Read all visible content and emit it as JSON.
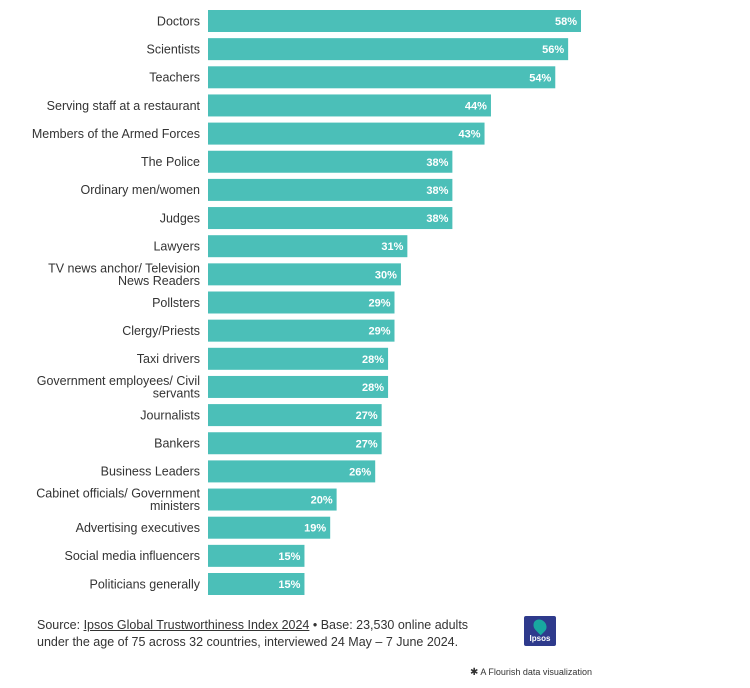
{
  "chart_data": {
    "type": "bar",
    "orientation": "horizontal",
    "bar_color": "#4bbfb8",
    "value_suffix": "%",
    "xlim": [
      0,
      70
    ],
    "grid": false,
    "categories": [
      [
        "Doctors"
      ],
      [
        "Scientists"
      ],
      [
        "Teachers"
      ],
      [
        "Serving staff at a restaurant"
      ],
      [
        "Members of the Armed Forces"
      ],
      [
        "The Police"
      ],
      [
        "Ordinary men/women"
      ],
      [
        "Judges"
      ],
      [
        "Lawyers"
      ],
      [
        "TV news anchor/ Television",
        "News Readers"
      ],
      [
        "Pollsters"
      ],
      [
        "Clergy/Priests"
      ],
      [
        "Taxi drivers"
      ],
      [
        "Government employees/ Civil",
        "servants"
      ],
      [
        "Journalists"
      ],
      [
        "Bankers"
      ],
      [
        "Business Leaders"
      ],
      [
        "Cabinet officials/ Government",
        "ministers"
      ],
      [
        "Advertising executives"
      ],
      [
        "Social media influencers"
      ],
      [
        "Politicians generally"
      ]
    ],
    "values": [
      58,
      56,
      54,
      44,
      43,
      38,
      38,
      38,
      31,
      30,
      29,
      29,
      28,
      28,
      27,
      27,
      26,
      20,
      19,
      15,
      15
    ],
    "value_labels": [
      "58%",
      "56%",
      "54%",
      "44%",
      "43%",
      "38%",
      "38%",
      "38%",
      "31%",
      "30%",
      "29%",
      "29%",
      "28%",
      "28%",
      "27%",
      "27%",
      "26%",
      "20%",
      "19%",
      "15%",
      "15%"
    ]
  },
  "footer": {
    "source_prefix": "Source: ",
    "source_link": "Ipsos Global Trustworthiness Index 2024",
    "source_rest": " • Base: 23,530 online adults under the age of 75 across 32 countries, interviewed 24 May – 7 June 2024."
  },
  "logo": {
    "text": "Ipsos",
    "bg_color": "#2e3a8c",
    "accent_color": "#18a8a0"
  },
  "credit": {
    "icon": "flourish-star-icon",
    "text": "A Flourish data visualization"
  }
}
